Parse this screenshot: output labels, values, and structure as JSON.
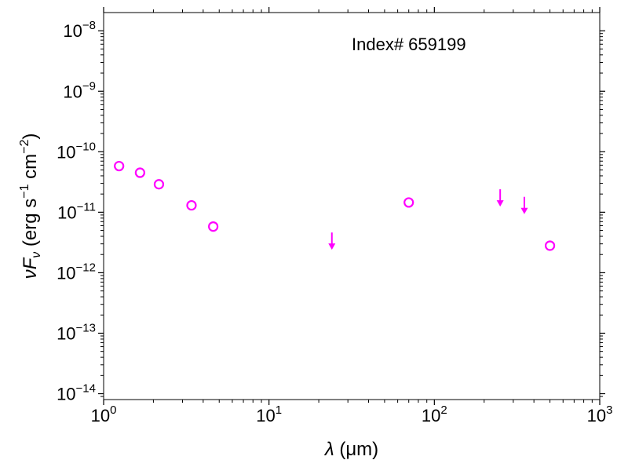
{
  "chart_data": {
    "type": "scatter",
    "x_scale": "log",
    "y_scale": "log",
    "xlim": [
      1,
      1000
    ],
    "ylim": [
      8e-15,
      2e-08
    ],
    "xlabel": {
      "prefix": "λ",
      "text": " (μm)"
    },
    "ylabel": {
      "prefix": "νF",
      "sub": "ν",
      "text": " (erg s",
      "sup1": "−1",
      "mid": " cm",
      "sup2": "−2",
      "end": ")"
    },
    "annotation": "Index# 659199",
    "x_ticks": [
      {
        "value": 1,
        "base": "10",
        "exp": "0"
      },
      {
        "value": 10,
        "base": "10",
        "exp": "1"
      },
      {
        "value": 100,
        "base": "10",
        "exp": "2"
      },
      {
        "value": 1000,
        "base": "10",
        "exp": "3"
      }
    ],
    "y_ticks": [
      {
        "value": 1e-14,
        "base": "10",
        "exp": "−14"
      },
      {
        "value": 1e-13,
        "base": "10",
        "exp": "−13"
      },
      {
        "value": 1e-12,
        "base": "10",
        "exp": "−12"
      },
      {
        "value": 1e-11,
        "base": "10",
        "exp": "−11"
      },
      {
        "value": 1e-10,
        "base": "10",
        "exp": "−10"
      },
      {
        "value": 1e-09,
        "base": "10",
        "exp": "−9"
      },
      {
        "value": 1e-08,
        "base": "10",
        "exp": "−8"
      }
    ],
    "series": [
      {
        "marker": "open-circle",
        "color": "#ff00ff",
        "points": [
          {
            "x": 1.24,
            "y": 5.8e-11
          },
          {
            "x": 1.66,
            "y": 4.5e-11
          },
          {
            "x": 2.16,
            "y": 2.9e-11
          },
          {
            "x": 3.4,
            "y": 1.3e-11
          },
          {
            "x": 4.6,
            "y": 5.8e-12
          },
          {
            "x": 70,
            "y": 1.45e-11
          },
          {
            "x": 500,
            "y": 2.8e-12
          }
        ]
      },
      {
        "marker": "upper-limit-arrow",
        "color": "#ff00ff",
        "points": [
          {
            "x": 24,
            "y": 2.7e-12
          },
          {
            "x": 250,
            "y": 1.4e-11
          },
          {
            "x": 350,
            "y": 1.05e-11
          }
        ]
      }
    ]
  }
}
